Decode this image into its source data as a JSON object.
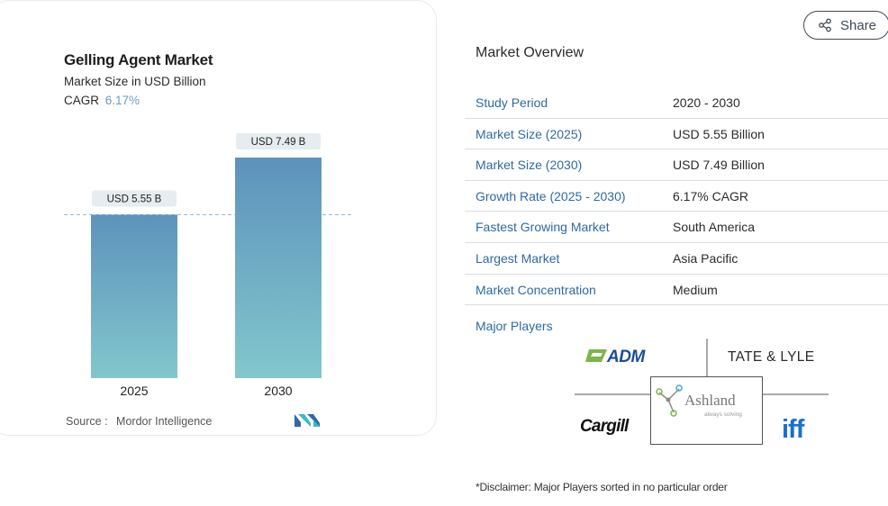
{
  "card": {
    "title": "Gelling Agent Market",
    "subtitle": "Market Size in USD Billion",
    "cagr_label": "CAGR",
    "cagr_value": "6.17%",
    "source_label": "Source :",
    "source_value": "Mordor Intelligence",
    "logo_name": "mordor-intelligence-logo"
  },
  "chart_data": {
    "type": "bar",
    "categories": [
      "2025",
      "2030"
    ],
    "values": [
      5.55,
      7.49
    ],
    "data_labels": [
      "USD 5.55 B",
      "USD 7.49 B"
    ],
    "unit": "USD Billion",
    "title": "Gelling Agent Market",
    "xlabel": "",
    "ylabel": "",
    "ylim": [
      0,
      7.49
    ],
    "reference_line": 5.55,
    "grid": false,
    "colors": {
      "bar_top": "#5d92bc",
      "bar_bottom": "#82c7cd",
      "label_bg": "#e6ecef",
      "dashed_line": "#9bbbd6"
    }
  },
  "share": {
    "label": "Share",
    "icon": "share-icon"
  },
  "overview": {
    "title": "Market Overview",
    "rows": [
      {
        "key": "Study Period",
        "value": "2020 - 2030"
      },
      {
        "key": "Market Size (2025)",
        "value": "USD 5.55 Billion"
      },
      {
        "key": "Market Size (2030)",
        "value": "USD 7.49 Billion"
      },
      {
        "key": "Growth Rate (2025 - 2030)",
        "value": "6.17% CAGR"
      },
      {
        "key": "Fastest Growing Market",
        "value": "South America"
      },
      {
        "key": "Largest Market",
        "value": "Asia Pacific"
      },
      {
        "key": "Market Concentration",
        "value": "Medium"
      }
    ],
    "players_title": "Major Players",
    "players": [
      {
        "name": "ADM",
        "logo": "adm-logo"
      },
      {
        "name": "TATE & LYLE",
        "logo": "tate-lyle-logo"
      },
      {
        "name": "Cargill",
        "logo": "cargill-logo"
      },
      {
        "name": "Ashland",
        "tagline": "always solving",
        "logo": "ashland-logo"
      },
      {
        "name": "iff",
        "logo": "iff-logo"
      }
    ],
    "disclaimer": "*Disclaimer: Major Players sorted in no particular order"
  },
  "colors": {
    "accent": "#2f6aa3",
    "text": "#2b2b2b",
    "divider": "#d9dde1"
  }
}
